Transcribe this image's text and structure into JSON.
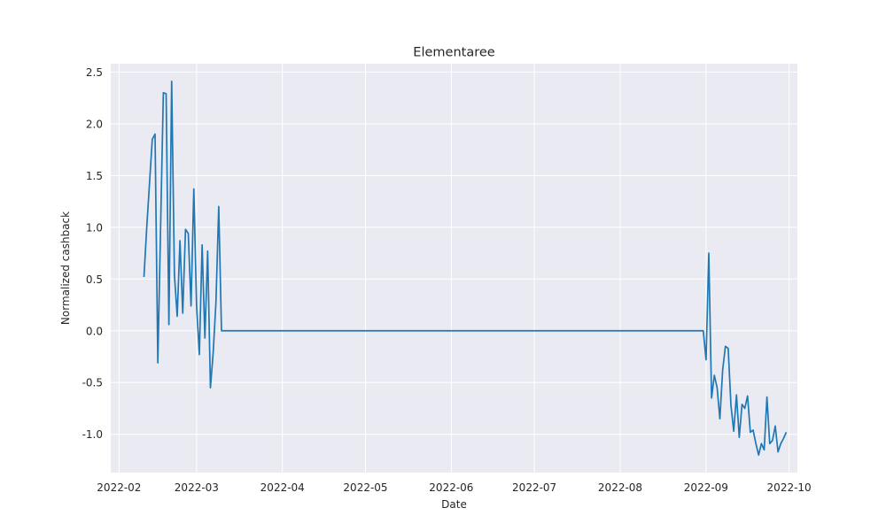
{
  "chart_data": {
    "type": "line",
    "title": "Elementaree",
    "xlabel": "Date",
    "ylabel": "Normalized cashback",
    "x_ticks": [
      "2022-02",
      "2022-03",
      "2022-04",
      "2022-05",
      "2022-06",
      "2022-07",
      "2022-08",
      "2022-09",
      "2022-10"
    ],
    "y_ticks": [
      "-1.0",
      "-0.5",
      "0.0",
      "0.5",
      "1.0",
      "1.5",
      "2.0",
      "2.5"
    ],
    "xlim": [
      "2022-01-29",
      "2022-10-04"
    ],
    "ylim": [
      -1.37,
      2.58
    ],
    "grid": true,
    "background": "#eaeaf2",
    "grid_color": "#ffffff",
    "line_color": "#1f77b4",
    "series": [
      {
        "x": [
          "2022-02-10",
          "2022-02-11",
          "2022-02-13",
          "2022-02-14",
          "2022-02-15",
          "2022-02-17",
          "2022-02-18",
          "2022-02-19",
          "2022-02-20",
          "2022-02-21",
          "2022-02-22",
          "2022-02-23",
          "2022-02-24",
          "2022-02-25",
          "2022-02-26",
          "2022-02-27",
          "2022-02-28",
          "2022-03-01",
          "2022-03-02",
          "2022-03-03",
          "2022-03-04",
          "2022-03-05",
          "2022-03-06",
          "2022-03-07",
          "2022-03-08",
          "2022-03-09",
          "2022-03-10",
          "2022-08-31",
          "2022-09-01",
          "2022-09-02",
          "2022-09-03",
          "2022-09-04",
          "2022-09-05",
          "2022-09-06",
          "2022-09-07",
          "2022-09-08",
          "2022-09-09",
          "2022-09-10",
          "2022-09-11",
          "2022-09-12",
          "2022-09-13",
          "2022-09-14",
          "2022-09-15",
          "2022-09-16",
          "2022-09-17",
          "2022-09-18",
          "2022-09-19",
          "2022-09-20",
          "2022-09-21",
          "2022-09-22",
          "2022-09-23",
          "2022-09-24",
          "2022-09-25",
          "2022-09-26",
          "2022-09-27",
          "2022-09-28",
          "2022-09-29",
          "2022-09-30"
        ],
        "values": [
          0.52,
          1.0,
          1.85,
          1.9,
          -0.31,
          2.3,
          2.29,
          0.06,
          2.41,
          0.54,
          0.14,
          0.87,
          0.17,
          0.98,
          0.94,
          0.24,
          1.37,
          0.24,
          -0.23,
          0.83,
          -0.07,
          0.77,
          -0.55,
          -0.21,
          0.28,
          1.2,
          0.0,
          0.0,
          -0.28,
          0.75,
          -0.65,
          -0.43,
          -0.55,
          -0.85,
          -0.38,
          -0.15,
          -0.17,
          -0.72,
          -0.97,
          -0.62,
          -1.03,
          -0.71,
          -0.75,
          -0.63,
          -0.98,
          -0.96,
          -1.09,
          -1.2,
          -1.09,
          -1.15,
          -0.64,
          -1.09,
          -1.06,
          -0.92,
          -1.17,
          -1.09,
          -1.04,
          -0.98
        ]
      }
    ]
  }
}
